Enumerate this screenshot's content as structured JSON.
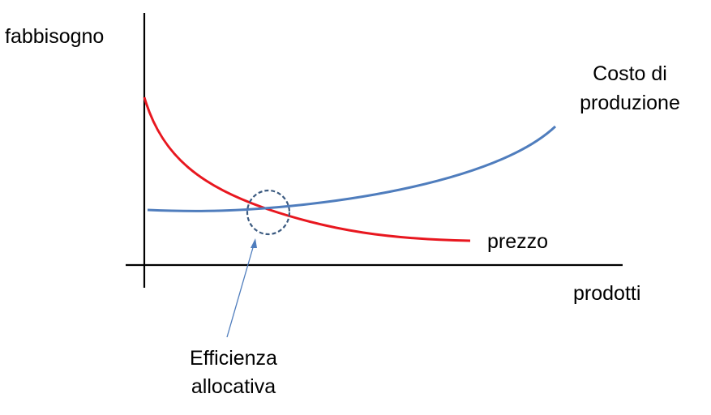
{
  "labels": {
    "y_axis": "fabbisogno",
    "x_axis": "prodotti",
    "cost_curve_line1": "Costo di",
    "cost_curve_line2": "produzione",
    "price_curve": "prezzo",
    "efficiency_line1": "Efficienza",
    "efficiency_line2": "allocativa"
  },
  "colors": {
    "axis": "#000000",
    "price_curve": "#e8171f",
    "cost_curve": "#4f7dbd",
    "marker_circle": "#3b5a80",
    "pointer_arrow": "#4f7dbd"
  }
}
